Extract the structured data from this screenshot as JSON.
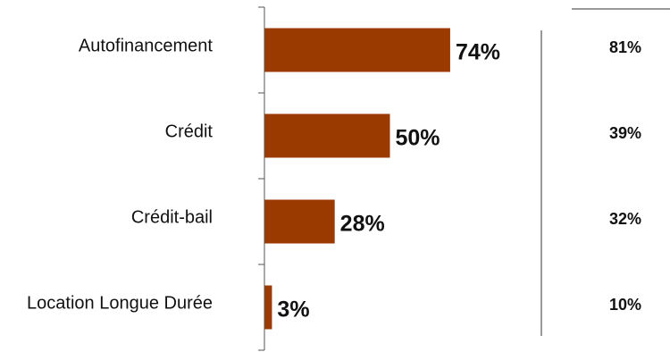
{
  "chart_data": {
    "type": "bar",
    "orientation": "horizontal",
    "categories": [
      "Autofinancement",
      "Crédit",
      "Crédit-bail",
      "Location Longue Durée"
    ],
    "series": [
      {
        "values": [
          74,
          50,
          28,
          3
        ]
      }
    ],
    "value_labels": [
      "74%",
      "50%",
      "28%",
      "3%"
    ],
    "comparison_values": [
      81,
      39,
      32,
      10
    ],
    "comparison_labels": [
      "81%",
      "39%",
      "32%",
      "10%"
    ],
    "xlim": [
      0,
      100
    ],
    "grid": false,
    "legend": "none",
    "colors": {
      "bar": "#9b3a00",
      "axis": "#555555",
      "divider": "#999999"
    }
  }
}
